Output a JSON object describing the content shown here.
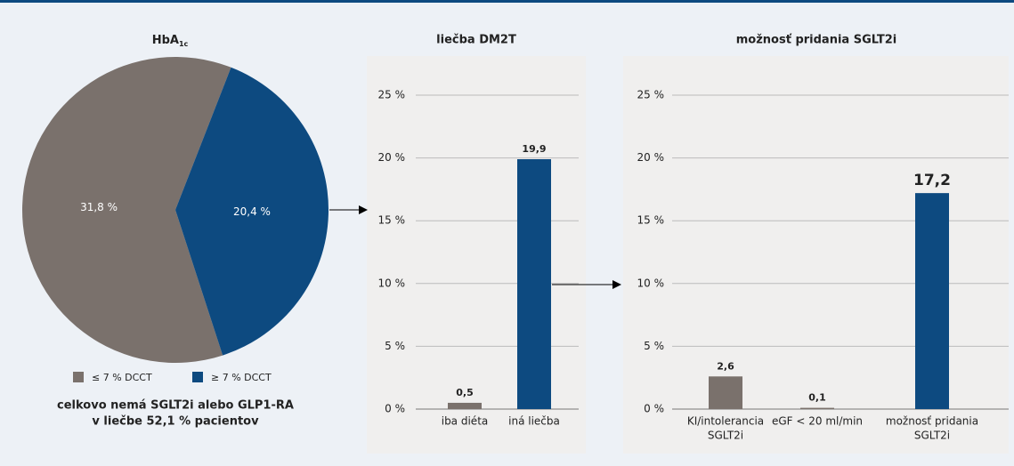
{
  "chart_data": [
    {
      "type": "pie",
      "title": "HbA",
      "title_subscript": "1c",
      "categories": [
        "≤ 7 % DCCT",
        "≥ 7 % DCCT"
      ],
      "values": [
        31.8,
        20.4
      ],
      "value_labels": [
        "31,8 %",
        "20,4 %"
      ],
      "colors": [
        "#7a716c",
        "#0d4a80"
      ],
      "caption": [
        "celkovo nemá SGLT2i alebo GLP1-RA",
        "v liečbe 52,1 % pacientov"
      ]
    },
    {
      "type": "bar",
      "title": "liečba DM2T",
      "categories": [
        [
          "iba diéta"
        ],
        [
          "iná liečba"
        ]
      ],
      "values": [
        0.5,
        19.9
      ],
      "value_labels": [
        "0,5",
        "19,9"
      ],
      "colors": [
        "#7a716c",
        "#0d4a80"
      ],
      "ylim": [
        0,
        25
      ],
      "yticks": [
        {
          "value": 0,
          "label": "0 %"
        },
        {
          "value": 5,
          "label": "5 %"
        },
        {
          "value": 10,
          "label": "10 %"
        },
        {
          "value": 15,
          "label": "15 %"
        },
        {
          "value": 20,
          "label": "20 %"
        },
        {
          "value": 25,
          "label": "25 %"
        }
      ],
      "grid": true
    },
    {
      "type": "bar",
      "title": "možnosť pridania SGLT2i",
      "categories": [
        [
          "KI/intolerancia",
          "SGLT2i"
        ],
        [
          "eGF < 20 ml/min"
        ],
        [
          "možnosť pridania",
          "SGLT2i"
        ]
      ],
      "values": [
        2.6,
        0.1,
        17.2
      ],
      "value_labels": [
        "2,6",
        "0,1",
        "17,2"
      ],
      "colors": [
        "#7a716c",
        "#7a716c",
        "#0d4a80"
      ],
      "ylim": [
        0,
        25
      ],
      "yticks": [
        {
          "value": 0,
          "label": "0 %"
        },
        {
          "value": 5,
          "label": "5 %"
        },
        {
          "value": 10,
          "label": "10 %"
        },
        {
          "value": 15,
          "label": "15 %"
        },
        {
          "value": 20,
          "label": "20 %"
        },
        {
          "value": 25,
          "label": "25 %"
        }
      ],
      "grid": true
    }
  ]
}
